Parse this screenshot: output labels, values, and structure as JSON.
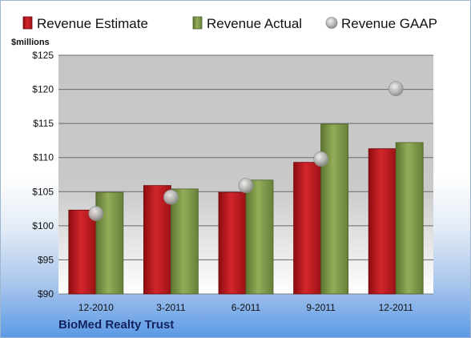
{
  "chart_data": {
    "type": "bar",
    "unit_label": "$millions",
    "categories": [
      "12-2010",
      "3-2011",
      "6-2011",
      "9-2011",
      "12-2011"
    ],
    "series": [
      {
        "name": "Revenue Estimate",
        "type": "bar",
        "color": "#c0171c",
        "values": [
          102.3,
          105.9,
          104.9,
          109.3,
          111.3
        ]
      },
      {
        "name": "Revenue Actual",
        "type": "bar",
        "color": "#7f9a45",
        "values": [
          104.9,
          105.4,
          106.7,
          114.9,
          112.2
        ]
      },
      {
        "name": "Revenue GAAP",
        "type": "marker",
        "color": "#b3b3b3",
        "values": [
          101.8,
          104.2,
          105.9,
          109.8,
          120.1
        ]
      }
    ],
    "y_ticks": [
      "$90",
      "$95",
      "$100",
      "$105",
      "$110",
      "$115",
      "$120",
      "$125"
    ],
    "ylim": [
      90,
      125
    ],
    "grid": true,
    "legend_position": "top"
  },
  "company_name": "BioMed Realty Trust"
}
